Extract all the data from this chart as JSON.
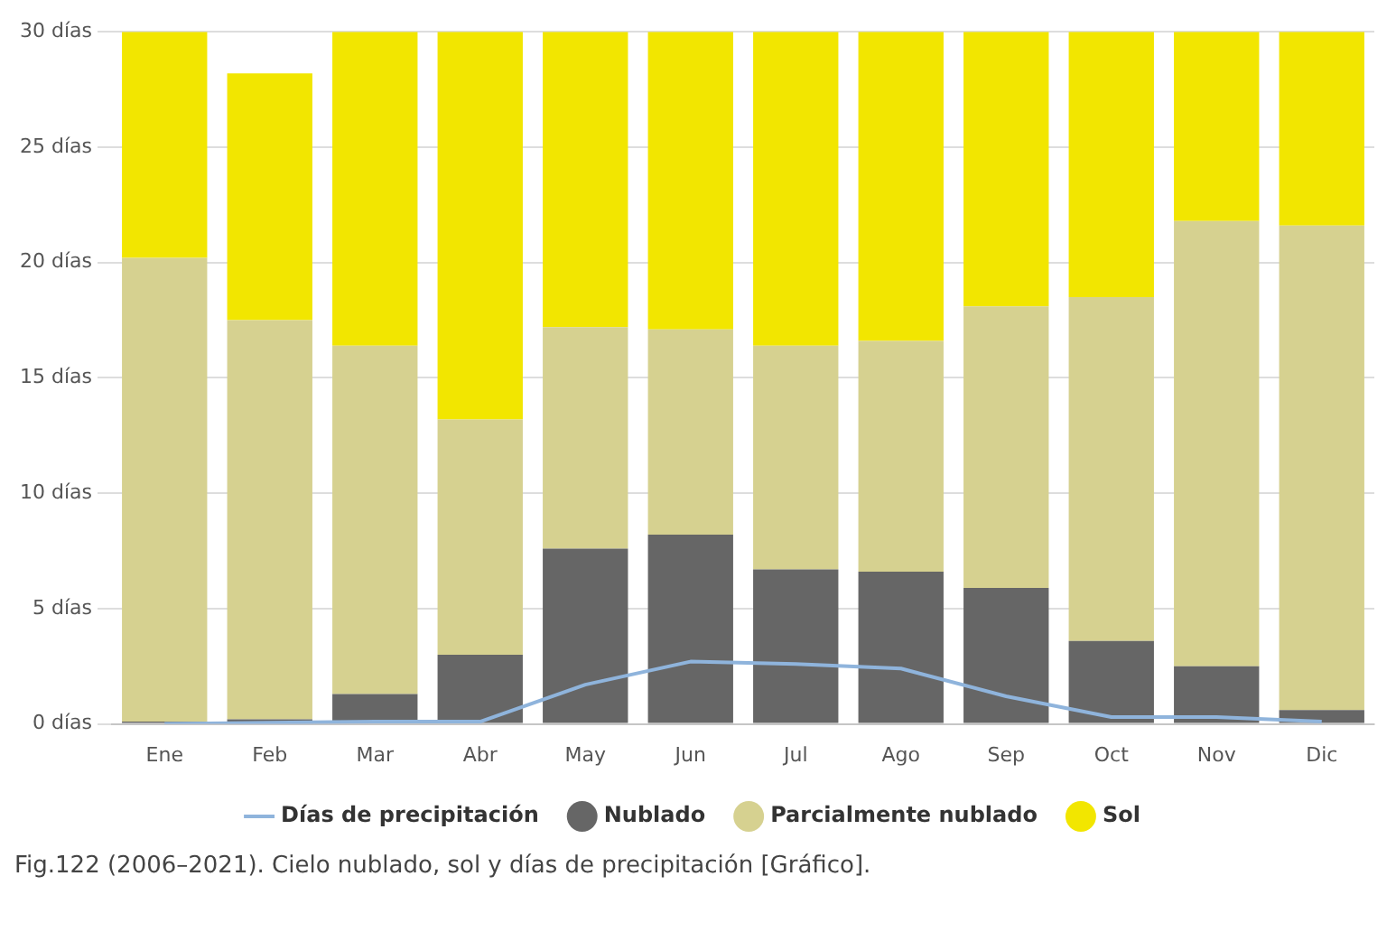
{
  "chart_data": {
    "type": "bar",
    "stacked": true,
    "categories": [
      "Ene",
      "Feb",
      "Mar",
      "Abr",
      "May",
      "Jun",
      "Jul",
      "Ago",
      "Sep",
      "Oct",
      "Nov",
      "Dic"
    ],
    "series": [
      {
        "name": "Nublado",
        "color": "#666666",
        "values": [
          0.1,
          0.2,
          1.3,
          3.0,
          7.6,
          8.2,
          6.7,
          6.6,
          5.9,
          3.6,
          2.5,
          0.6
        ]
      },
      {
        "name": "Parcialmente nublado",
        "color": "#d6d190",
        "values": [
          20.1,
          17.3,
          15.1,
          10.2,
          9.6,
          8.9,
          9.7,
          10.0,
          12.2,
          14.9,
          19.3,
          21.0
        ]
      },
      {
        "name": "Sol",
        "color": "#f2e600",
        "values": [
          9.8,
          10.7,
          13.6,
          16.8,
          12.8,
          12.9,
          13.6,
          13.4,
          11.9,
          11.5,
          8.2,
          8.4
        ]
      },
      {
        "name": "Días de precipitación",
        "type": "line",
        "color": "#8fb4dc",
        "values": [
          0,
          0.05,
          0.1,
          0.1,
          1.7,
          2.7,
          2.6,
          2.4,
          1.2,
          0.3,
          0.3,
          0.1
        ]
      }
    ],
    "ylim": [
      0,
      30
    ],
    "yticks": [
      {
        "value": 0,
        "label": "0 días"
      },
      {
        "value": 5,
        "label": "5 días"
      },
      {
        "value": 10,
        "label": "10 días"
      },
      {
        "value": 15,
        "label": "15 días"
      },
      {
        "value": 20,
        "label": "20 días"
      },
      {
        "value": 25,
        "label": "25 días"
      },
      {
        "value": 30,
        "label": "30 días"
      }
    ],
    "grid": "y",
    "legend": "bottom",
    "marker": "none",
    "annotations": [
      "Fig.122 (2006–2021). Cielo nublado, sol y días de precipitación [Gráfico]."
    ]
  }
}
